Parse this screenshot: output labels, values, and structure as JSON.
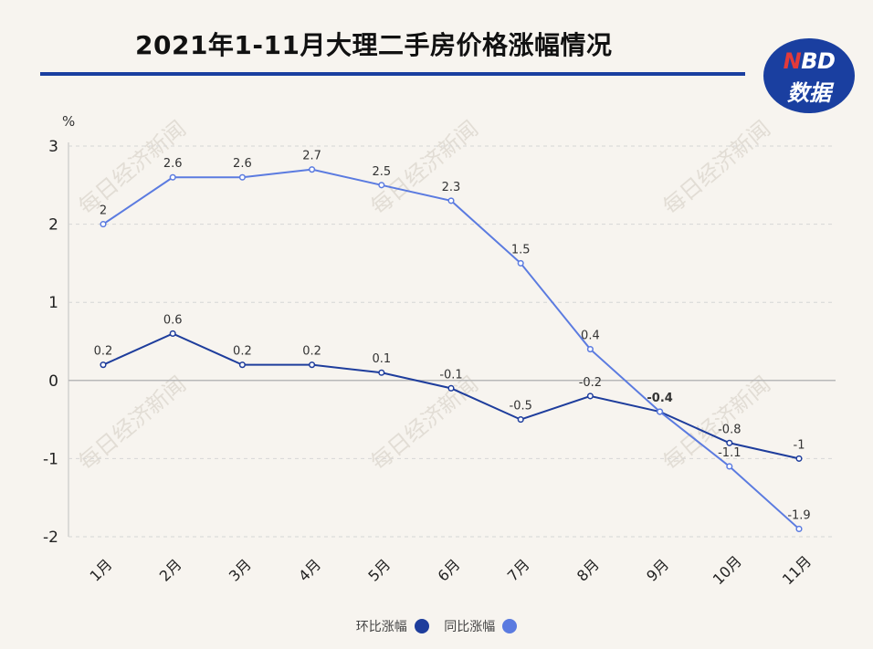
{
  "title": "2021年1-11月大理二手房价格涨幅情况",
  "logo": {
    "line1_n": "N",
    "line1_rest": "BD",
    "line2": "数据"
  },
  "watermark": "每日经济新闻",
  "colors": {
    "accent": "#1a3fa0",
    "mom_line": "#1e3d9c",
    "yoy_line": "#5b7be0",
    "logo_bg": "#1a3fa0",
    "axis": "#bfbfbf",
    "grid": "#d6d6d6"
  },
  "chart_data": {
    "type": "line",
    "categories": [
      "1月",
      "2月",
      "3月",
      "4月",
      "5月",
      "6月",
      "7月",
      "8月",
      "9月",
      "10月",
      "11月"
    ],
    "ylabel": "%",
    "ylim": [
      -2,
      3
    ],
    "yticks": [
      3,
      2,
      1,
      0,
      -1,
      -2
    ],
    "grid": true,
    "legend_position": "bottom-center",
    "series": [
      {
        "name": "环比涨幅",
        "values": [
          0.2,
          0.6,
          0.2,
          0.2,
          0.1,
          -0.1,
          -0.5,
          -0.2,
          -0.4,
          -0.8,
          -1
        ],
        "labels": [
          "0.2",
          "0.6",
          "0.2",
          "0.2",
          "0.1",
          "-0.1",
          "-0.5",
          "-0.2",
          "-0.4",
          "-0.8",
          "-1"
        ]
      },
      {
        "name": "同比涨幅",
        "values": [
          2,
          2.6,
          2.6,
          2.7,
          2.5,
          2.3,
          1.5,
          0.4,
          -0.4,
          -1.1,
          -1.9
        ],
        "labels": [
          "2",
          "2.6",
          "2.6",
          "2.7",
          "2.5",
          "2.3",
          "1.5",
          "0.4",
          "",
          "-1.1",
          "-1.9"
        ]
      }
    ]
  }
}
